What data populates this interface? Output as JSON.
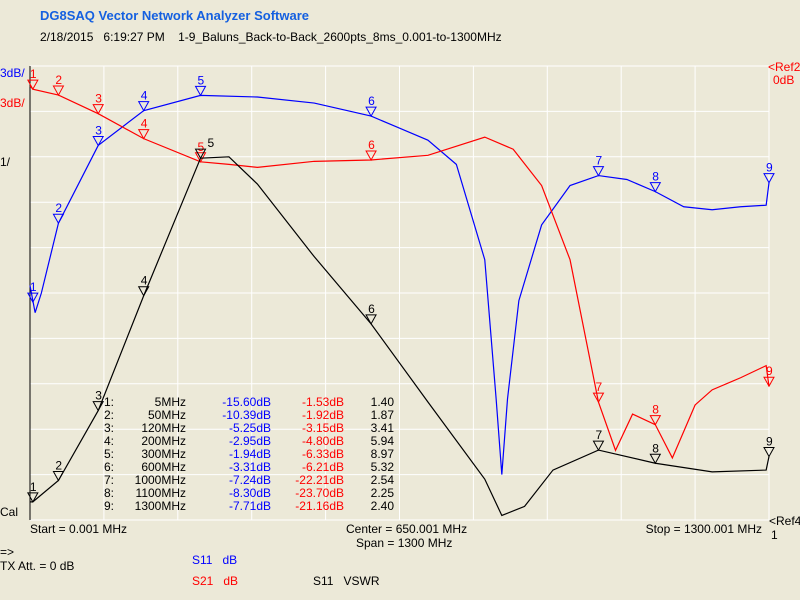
{
  "header": {
    "title": "DG8SAQ Vector Network Analyzer Software",
    "date": "2/18/2015",
    "time": "6:19:27 PM",
    "filename": "1-9_Baluns_Back-to-Back_2600pts_8ms_0.001-to-1300MHz"
  },
  "scales": {
    "blue": "3dB/",
    "red": "3dB/",
    "black": "1/",
    "cal": "Cal",
    "ref_top": "<Ref",
    "ref_top_num_red": "2",
    "ref_top_num_blue": "1",
    "ref_top_level": "0dB",
    "ref_bottom": "<Ref4",
    "ref_bottom_level": "1"
  },
  "colors": {
    "background": "#ECE9D8",
    "grid": "#FFFFFF",
    "s11": "#0000FF",
    "s21": "#FF0000",
    "vswr": "#000000",
    "title": "#1560E0"
  },
  "footer": {
    "start": "Start = 0.001 MHz",
    "center": "Center = 650.001 MHz",
    "span": "Span = 1300 MHz",
    "stop": "Stop = 1300.001 MHz",
    "arrow": "=>",
    "tx_att": "TX Att.  = 0 dB",
    "trace1_param": "S11",
    "trace1_unit": "dB",
    "trace2_param": "S21",
    "trace2_unit": "dB",
    "trace3_param": "S11",
    "trace3_unit": "VSWR"
  },
  "markers": [
    {
      "n": "1:",
      "f": "5MHz",
      "s11": "-15.60dB",
      "s21": "-1.53dB",
      "vswr": "1.40"
    },
    {
      "n": "2:",
      "f": "50MHz",
      "s11": "-10.39dB",
      "s21": "-1.92dB",
      "vswr": "1.87"
    },
    {
      "n": "3:",
      "f": "120MHz",
      "s11": "-5.25dB",
      "s21": "-3.15dB",
      "vswr": "3.41"
    },
    {
      "n": "4:",
      "f": "200MHz",
      "s11": "-2.95dB",
      "s21": "-4.80dB",
      "vswr": "5.94"
    },
    {
      "n": "5:",
      "f": "300MHz",
      "s11": "-1.94dB",
      "s21": "-6.33dB",
      "vswr": "8.97"
    },
    {
      "n": "6:",
      "f": "600MHz",
      "s11": "-3.31dB",
      "s21": "-6.21dB",
      "vswr": "5.32"
    },
    {
      "n": "7:",
      "f": "1000MHz",
      "s11": "-7.24dB",
      "s21": "-22.21dB",
      "vswr": "2.54"
    },
    {
      "n": "8:",
      "f": "1100MHz",
      "s11": "-8.30dB",
      "s21": "-23.70dB",
      "vswr": "2.25"
    },
    {
      "n": "9:",
      "f": "1300MHz",
      "s11": "-7.71dB",
      "s21": "-21.16dB",
      "vswr": "2.40"
    }
  ],
  "chart_data": {
    "type": "line",
    "xlim": [
      0.001,
      1300.001
    ],
    "x_unit": "MHz",
    "grid": true,
    "marker_freqs": [
      5,
      50,
      120,
      200,
      300,
      600,
      1000,
      1100,
      1300
    ],
    "series": [
      {
        "name": "S11 dB",
        "axis": "dB",
        "ref": 0,
        "per_div": 3,
        "color": "#0000FF",
        "points": [
          [
            0,
            -14.5
          ],
          [
            9,
            -16.3
          ],
          [
            20,
            -15
          ],
          [
            50,
            -10.39
          ],
          [
            120,
            -5.25
          ],
          [
            200,
            -2.95
          ],
          [
            300,
            -1.94
          ],
          [
            400,
            -2.05
          ],
          [
            500,
            -2.45
          ],
          [
            600,
            -3.31
          ],
          [
            700,
            -4.9
          ],
          [
            750,
            -6.5
          ],
          [
            800,
            -12.8
          ],
          [
            820,
            -22
          ],
          [
            830,
            -27
          ],
          [
            840,
            -22
          ],
          [
            860,
            -15.5
          ],
          [
            900,
            -10.5
          ],
          [
            950,
            -7.9
          ],
          [
            1000,
            -7.24
          ],
          [
            1050,
            -7.5
          ],
          [
            1100,
            -8.3
          ],
          [
            1150,
            -9.3
          ],
          [
            1200,
            -9.5
          ],
          [
            1250,
            -9.3
          ],
          [
            1295,
            -9.2
          ],
          [
            1300,
            -7.71
          ]
        ]
      },
      {
        "name": "S21 dB",
        "axis": "dB",
        "ref": 0,
        "per_div": 3,
        "color": "#FF0000",
        "points": [
          [
            0,
            -1.3
          ],
          [
            5,
            -1.53
          ],
          [
            50,
            -1.92
          ],
          [
            120,
            -3.15
          ],
          [
            200,
            -4.8
          ],
          [
            300,
            -6.33
          ],
          [
            350,
            -6.5
          ],
          [
            400,
            -6.7
          ],
          [
            500,
            -6.3
          ],
          [
            600,
            -6.21
          ],
          [
            700,
            -5.9
          ],
          [
            800,
            -4.7
          ],
          [
            850,
            -5.5
          ],
          [
            900,
            -7.9
          ],
          [
            950,
            -12.8
          ],
          [
            1000,
            -22.21
          ],
          [
            1030,
            -25.4
          ],
          [
            1060,
            -23
          ],
          [
            1100,
            -23.7
          ],
          [
            1130,
            -25.9
          ],
          [
            1170,
            -22.4
          ],
          [
            1200,
            -21.4
          ],
          [
            1250,
            -20.6
          ],
          [
            1295,
            -19.8
          ],
          [
            1300,
            -21.16
          ]
        ]
      },
      {
        "name": "S11 VSWR",
        "axis": "VSWR",
        "ref": 1,
        "per_div": 1,
        "color": "#000000",
        "points": [
          [
            0,
            1.4
          ],
          [
            5,
            1.4
          ],
          [
            50,
            1.87
          ],
          [
            120,
            3.41
          ],
          [
            200,
            5.94
          ],
          [
            300,
            8.97
          ],
          [
            350,
            9.0
          ],
          [
            400,
            8.4
          ],
          [
            500,
            6.8
          ],
          [
            600,
            5.32
          ],
          [
            700,
            3.6
          ],
          [
            800,
            1.9
          ],
          [
            830,
            1.1
          ],
          [
            870,
            1.3
          ],
          [
            920,
            2.1
          ],
          [
            1000,
            2.54
          ],
          [
            1100,
            2.25
          ],
          [
            1200,
            2.06
          ],
          [
            1295,
            2.1
          ],
          [
            1300,
            2.4
          ]
        ]
      }
    ]
  }
}
